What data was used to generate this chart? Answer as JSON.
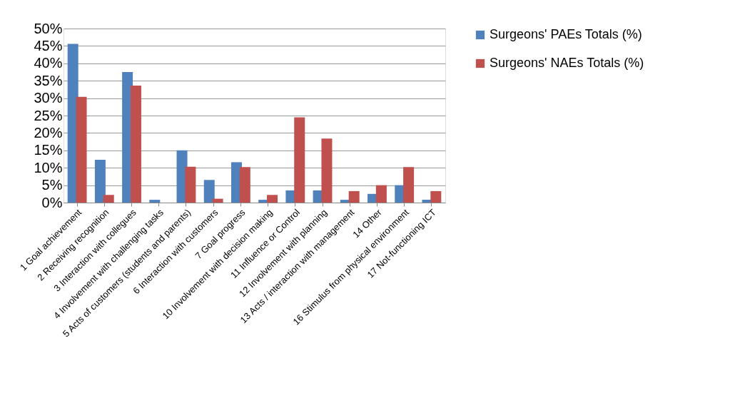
{
  "chart_data": {
    "type": "bar",
    "categories": [
      "1 Goal achievement",
      "2 Receiving recognition",
      "3 Interaction with collegues",
      "4 Involvement with challenging tasks",
      "5 Acts of customers (students and parents)",
      "6 Interaction with customers",
      "7 Goal progress",
      "10 Involvement with decision making",
      "11 Influence or Control",
      "12 Involvement with planning",
      "13 Acts  / interaction with management",
      "14 Other",
      "16 Stimulus from physical environment",
      "17 Not-functioning ICT"
    ],
    "series": [
      {
        "name": "Surgeons' PAEs Totals (%)",
        "color": "#4f81bd",
        "values": [
          45.6,
          12.3,
          37.5,
          0.8,
          15.0,
          6.5,
          11.6,
          0.8,
          3.5,
          3.5,
          0.8,
          2.5,
          5.0,
          0.8
        ]
      },
      {
        "name": "Surgeons' NAEs Totals (%)",
        "color": "#c0504d",
        "values": [
          30.4,
          2.2,
          33.6,
          0,
          10.3,
          1.1,
          10.2,
          2.2,
          24.5,
          18.4,
          3.3,
          5.0,
          10.2,
          3.3
        ]
      }
    ],
    "ylim": [
      0,
      50
    ],
    "yticks": [
      {
        "value": 0,
        "label": "0%"
      },
      {
        "value": 5,
        "label": "5%"
      },
      {
        "value": 10,
        "label": "10%"
      },
      {
        "value": 15,
        "label": "15%"
      },
      {
        "value": 20,
        "label": "20%"
      },
      {
        "value": 25,
        "label": "25%"
      },
      {
        "value": 30,
        "label": "30%"
      },
      {
        "value": 35,
        "label": "35%"
      },
      {
        "value": 40,
        "label": "40%"
      },
      {
        "value": 45,
        "label": "45%"
      },
      {
        "value": 50,
        "label": "50%"
      }
    ],
    "grid": "y",
    "legend": "right"
  }
}
